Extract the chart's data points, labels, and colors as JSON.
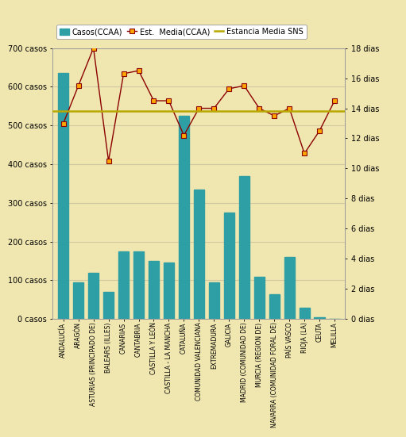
{
  "categories": [
    "ANDALUCÍA",
    "ARAGÓN",
    "ASTURIAS (PRINCIPADO DE)",
    "BALEARS (ILLES)",
    "CANARIAS",
    "CANTABRIA",
    "CASTILLA Y LEÓN",
    "CASTILLA - LA MANCHA",
    "CATALUÑA",
    "COMUNIDAD VALENCIANA",
    "EXTREMADURA",
    "GALICIA",
    "MADRID (COMUNIDAD DE)",
    "MURCIA (REGION DE)",
    "NAVARRA (COMUNIDAD FORAL DE)",
    "PAÍS VASCO",
    "RIOJA (LA)",
    "CEUTA",
    "MELILLA"
  ],
  "bar_values": [
    635,
    95,
    120,
    70,
    175,
    175,
    150,
    145,
    525,
    335,
    95,
    275,
    370,
    110,
    65,
    160,
    30,
    5,
    0
  ],
  "line_values": [
    13.0,
    15.5,
    18.0,
    10.5,
    16.3,
    16.5,
    14.5,
    14.5,
    12.2,
    14.0,
    14.0,
    15.3,
    15.5,
    14.0,
    13.5,
    14.0,
    11.0,
    12.5,
    14.5
  ],
  "sns_line": 13.8,
  "bar_color": "#2e9fa5",
  "line_color": "#8B0000",
  "line_marker": "s",
  "line_marker_facecolor": "#FFA500",
  "line_marker_edgecolor": "#8B0000",
  "sns_color": "#b8a800",
  "background_color": "#f0e6b0",
  "ylim_left": [
    0,
    700
  ],
  "ylim_right": [
    0,
    18
  ],
  "ytick_left": [
    0,
    100,
    200,
    300,
    400,
    500,
    600,
    700
  ],
  "ytick_right": [
    0,
    2,
    4,
    6,
    8,
    10,
    12,
    14,
    16,
    18
  ],
  "legend_bar": "Casos(CCAA)",
  "legend_line": "Est.  Media(CCAA)",
  "legend_sns": "Estancia Media SNS",
  "grid_color": "#d0c8a0",
  "bar_width": 0.7
}
